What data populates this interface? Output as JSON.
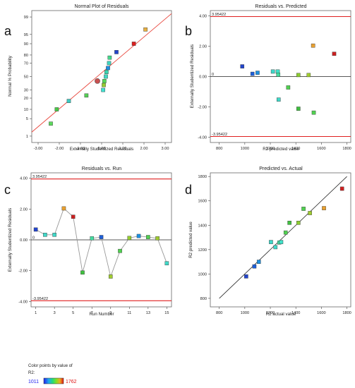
{
  "panels": {
    "a": {
      "label": "a",
      "chart_data": {
        "type": "scatter",
        "title": "Normal Plot of Residuals",
        "xlabel": "Externally Studentized Residuals",
        "ylabel": "Normal % Probability",
        "xlim": [
          -3.3,
          3.3
        ],
        "xticks": [
          "-3.00",
          "-2.00",
          "-1.00",
          "0.00",
          "1.00",
          "2.00",
          "3.00"
        ],
        "yticks": [
          "1",
          "5",
          "10",
          "20",
          "30",
          "50",
          "70",
          "80",
          "90",
          "95",
          "99"
        ],
        "points": [
          {
            "x": -2.4,
            "p": 3.3,
            "color": "#5cd85c"
          },
          {
            "x": -2.12,
            "p": 10,
            "color": "#49c949"
          },
          {
            "x": -1.55,
            "p": 17,
            "color": "#3ec9c0"
          },
          {
            "x": -0.72,
            "p": 23,
            "color": "#56cc56"
          },
          {
            "x": -0.2,
            "p": 43,
            "color": "#c85050"
          },
          {
            "x": 0.07,
            "p": 30,
            "color": "#40e0d0"
          },
          {
            "x": 0.1,
            "p": 37,
            "color": "#94cc30"
          },
          {
            "x": 0.13,
            "p": 43,
            "color": "#57d957"
          },
          {
            "x": 0.2,
            "p": 50,
            "color": "#41d9c4"
          },
          {
            "x": 0.23,
            "p": 57,
            "color": "#3ad6b0"
          },
          {
            "x": 0.3,
            "p": 63,
            "color": "#1e8fe0"
          },
          {
            "x": 0.35,
            "p": 70,
            "color": "#3fd6c0"
          },
          {
            "x": 0.38,
            "p": 77,
            "color": "#44d68a"
          },
          {
            "x": 0.7,
            "p": 83,
            "color": "#2244cc"
          },
          {
            "x": 1.52,
            "p": 90,
            "color": "#dd2020"
          },
          {
            "x": 2.07,
            "p": 96.7,
            "color": "#e8b040"
          }
        ],
        "fit_line": {
          "x": [
            -3.3,
            3.3
          ],
          "p": [
            1.5,
            99.3
          ],
          "color": "#e8443a"
        }
      }
    },
    "b": {
      "label": "b",
      "chart_data": {
        "type": "scatter",
        "title": "Residuals vs. Predicted",
        "xlabel": "R2 predicted value",
        "ylabel": "Externally Studentized Residuals",
        "xlim": [
          730,
          1830
        ],
        "ylim": [
          -4.35,
          4.35
        ],
        "xticks": [
          "800",
          "1000",
          "1200",
          "1400",
          "1600",
          "1800"
        ],
        "yticks": [
          "-4.00",
          "-2.00",
          "0.00",
          "2.00",
          "4.00"
        ],
        "limit_upper": "3.95422",
        "limit_lower": "-3.95422",
        "zero_label": "0",
        "points": [
          {
            "x": 980,
            "y": 0.67,
            "color": "#2244cc"
          },
          {
            "x": 1060,
            "y": 0.18,
            "color": "#1e5fd8"
          },
          {
            "x": 1100,
            "y": 0.25,
            "color": "#1e90e0"
          },
          {
            "x": 1220,
            "y": 0.33,
            "color": "#3fd6c8"
          },
          {
            "x": 1258,
            "y": 0.33,
            "color": "#40e0c8"
          },
          {
            "x": 1262,
            "y": 0.12,
            "color": "#44dca0"
          },
          {
            "x": 1265,
            "y": -1.52,
            "color": "#40d8c8"
          },
          {
            "x": 1340,
            "y": -0.72,
            "color": "#50d050"
          },
          {
            "x": 1420,
            "y": 0.1,
            "color": "#8ccc30"
          },
          {
            "x": 1420,
            "y": -2.12,
            "color": "#40c040"
          },
          {
            "x": 1500,
            "y": 0.1,
            "color": "#a0cc30"
          },
          {
            "x": 1535,
            "y": 2.04,
            "color": "#e8a030"
          },
          {
            "x": 1540,
            "y": -2.38,
            "color": "#50d050"
          },
          {
            "x": 1700,
            "y": 1.5,
            "color": "#cc2020"
          }
        ]
      }
    },
    "c": {
      "label": "c",
      "chart_data": {
        "type": "line",
        "title": "Residuals vs. Run",
        "xlabel": "Run Number",
        "ylabel": "Externally Studentized Residuals",
        "xlim": [
          0.5,
          15.5
        ],
        "ylim": [
          -4.35,
          4.35
        ],
        "xticks": [
          "1",
          "3",
          "5",
          "7",
          "9",
          "11",
          "13",
          "15"
        ],
        "yticks": [
          "-4.00",
          "-2.00",
          "0.00",
          "2.00",
          "4.00"
        ],
        "limit_upper": "3.95422",
        "limit_lower": "-3.95422",
        "zero_label": "0",
        "x": [
          1,
          2,
          3,
          4,
          5,
          6,
          7,
          8,
          9,
          10,
          11,
          12,
          13,
          14,
          15
        ],
        "y": [
          0.67,
          0.33,
          0.33,
          2.04,
          1.5,
          -2.12,
          0.1,
          0.18,
          -2.38,
          -0.72,
          0.12,
          0.25,
          0.18,
          0.1,
          -1.52
        ],
        "colors": [
          "#2244cc",
          "#40d8c8",
          "#40d8c8",
          "#e8a030",
          "#cc2020",
          "#40c040",
          "#44dca0",
          "#1e5fd8",
          "#a0cc30",
          "#50d050",
          "#94cc30",
          "#1e90e0",
          "#50d050",
          "#a0cc30",
          "#40d8c8"
        ]
      }
    },
    "d": {
      "label": "d",
      "chart_data": {
        "type": "scatter",
        "title": "Predicted vs. Actual",
        "xlabel": "R2 actual value",
        "ylabel": "R2 predicted value",
        "xlim": [
          730,
          1830
        ],
        "ylim": [
          730,
          1830
        ],
        "xticks": [
          "800",
          "1000",
          "1200",
          "1400",
          "1600",
          "1800"
        ],
        "yticks": [
          "800",
          "1000",
          "1200",
          "1400",
          "1600",
          "1800"
        ],
        "points": [
          {
            "x": 1011,
            "y": 980,
            "color": "#2244cc"
          },
          {
            "x": 1075,
            "y": 1062,
            "color": "#1e5fd8"
          },
          {
            "x": 1110,
            "y": 1100,
            "color": "#1e90e0"
          },
          {
            "x": 1205,
            "y": 1262,
            "color": "#3fd6c8"
          },
          {
            "x": 1240,
            "y": 1220,
            "color": "#40d8c8"
          },
          {
            "x": 1270,
            "y": 1258,
            "color": "#44dca0"
          },
          {
            "x": 1285,
            "y": 1262,
            "color": "#40e0c8"
          },
          {
            "x": 1320,
            "y": 1340,
            "color": "#50d050"
          },
          {
            "x": 1350,
            "y": 1420,
            "color": "#40c040"
          },
          {
            "x": 1420,
            "y": 1420,
            "color": "#8ccc30"
          },
          {
            "x": 1460,
            "y": 1535,
            "color": "#50d050"
          },
          {
            "x": 1510,
            "y": 1500,
            "color": "#a0cc30"
          },
          {
            "x": 1620,
            "y": 1540,
            "color": "#e8a030"
          },
          {
            "x": 1762,
            "y": 1700,
            "color": "#cc2020"
          }
        ],
        "fit_line": {
          "x": [
            800,
            1800
          ],
          "y": [
            800,
            1800
          ]
        }
      }
    }
  },
  "color_legend": {
    "title_line1": "Color points by value of",
    "title_line2": "R2:",
    "min": "1011",
    "max": "1762",
    "min_color": "#2222ee",
    "max_color": "#dd1111"
  }
}
